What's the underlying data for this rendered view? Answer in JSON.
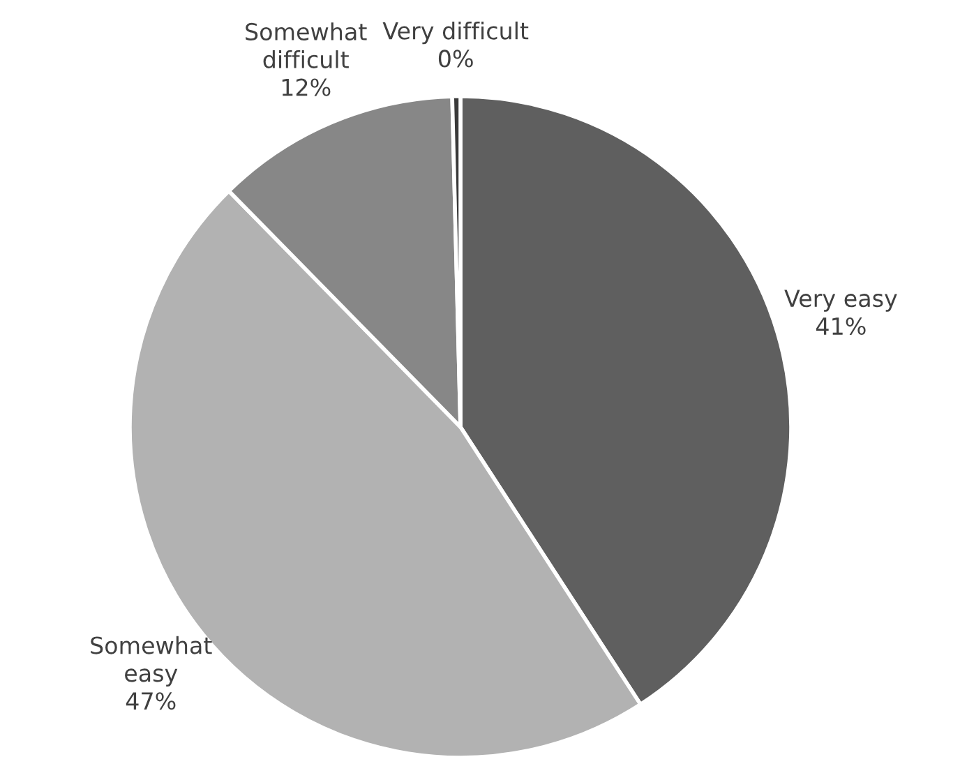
{
  "chart_data": {
    "type": "pie",
    "categories": [
      "Very easy",
      "Somewhat easy",
      "Somewhat difficult",
      "Very difficult"
    ],
    "values": [
      41,
      47,
      12,
      0.4
    ],
    "value_labels": [
      "41%",
      "47%",
      "12%",
      "0%"
    ],
    "colors": [
      "#5f5f5f",
      "#b2b2b2",
      "#878787",
      "#3a3a3a"
    ]
  }
}
